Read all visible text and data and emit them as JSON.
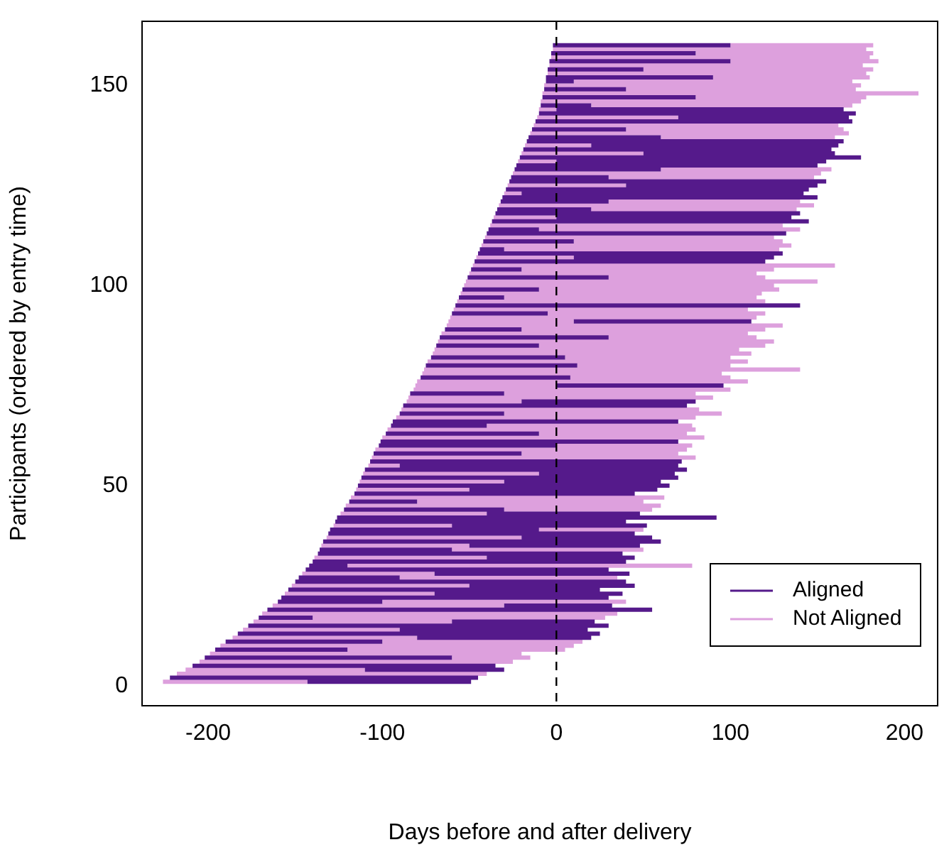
{
  "chart_data": {
    "type": "line",
    "xlabel": "Days before and after delivery",
    "ylabel": "Participants (ordered by entry time)",
    "xlim": [
      -238,
      219
    ],
    "ylim": [
      -5,
      166
    ],
    "xticks": [
      -200,
      -100,
      0,
      100,
      200
    ],
    "yticks": [
      0,
      50,
      100,
      150
    ],
    "legend": "bottom right",
    "line_style": "solid",
    "ref_lines": [
      {
        "axis": "x",
        "value": 0,
        "color": "#000000",
        "line_style": "dashed"
      }
    ],
    "series": [
      {
        "name": "Aligned",
        "color": "#551a8b",
        "x": [
          -143,
          -49,
          null,
          -222,
          -45,
          null,
          -110,
          -30,
          null,
          -209,
          -35,
          null,
          -202,
          -60,
          null,
          -196,
          -120,
          null,
          -190,
          -100,
          null,
          -80,
          20,
          null,
          -183,
          25,
          null,
          -90,
          18,
          null,
          -177,
          30,
          null,
          -60,
          22,
          null,
          -171,
          -140,
          null,
          -166,
          55,
          null,
          -30,
          32,
          null,
          -160,
          -100,
          null,
          -158,
          30,
          null,
          -70,
          38,
          null,
          -154,
          25,
          null,
          -50,
          45,
          null,
          -150,
          40,
          null,
          -148,
          -90,
          null,
          -70,
          42,
          null,
          -144,
          30,
          null,
          -142,
          -120,
          null,
          -140,
          40,
          null,
          -40,
          45,
          null,
          -137,
          38,
          null,
          -136,
          -60,
          null,
          -50,
          48,
          null,
          -134,
          60,
          null,
          -20,
          55,
          null,
          -131,
          45,
          null,
          -130,
          -10,
          null,
          -60,
          52,
          null,
          -127,
          40,
          null,
          -126,
          92,
          null,
          -40,
          48,
          null,
          -122,
          -30,
          null,
          -119,
          -80,
          null,
          -116,
          45,
          null,
          -50,
          58,
          null,
          -114,
          65,
          null,
          -30,
          60,
          null,
          -112,
          70,
          null,
          -10,
          68,
          null,
          -110,
          75,
          null,
          -90,
          70,
          null,
          -107,
          72,
          null,
          -105,
          -20,
          null,
          -102,
          0,
          null,
          -101,
          70,
          null,
          -98,
          -10,
          null,
          -95,
          -40,
          null,
          -94,
          70,
          null,
          -90,
          -30,
          null,
          -88,
          75,
          null,
          -20,
          80,
          null,
          -84,
          -30,
          null,
          0,
          96,
          null,
          -78,
          8,
          null,
          -75,
          12,
          null,
          -72,
          5,
          null,
          -69,
          -10,
          null,
          -67,
          30,
          null,
          -64,
          -20,
          null,
          10,
          112,
          null,
          -60,
          -5,
          null,
          -58,
          140,
          null,
          -56,
          -30,
          null,
          -54,
          -10,
          null,
          -51,
          30,
          null,
          -49,
          -20,
          null,
          -47,
          120,
          null,
          10,
          125,
          null,
          -45,
          130,
          null,
          -44,
          -30,
          null,
          -42,
          10,
          null,
          -40,
          132,
          null,
          -39,
          -10,
          null,
          -37,
          145,
          null,
          0,
          135,
          null,
          -35,
          140,
          null,
          -34,
          20,
          null,
          -32,
          30,
          null,
          -31,
          150,
          null,
          -20,
          142,
          null,
          -29,
          145,
          null,
          40,
          150,
          null,
          -27,
          155,
          null,
          -26,
          30,
          null,
          -24,
          60,
          null,
          -23,
          150,
          null,
          0,
          155,
          null,
          -21,
          175,
          null,
          50,
          160,
          null,
          -19,
          158,
          null,
          20,
          162,
          null,
          -17,
          165,
          null,
          -16,
          60,
          null,
          -14,
          40,
          null,
          -12,
          170,
          null,
          70,
          168,
          null,
          -10,
          172,
          null,
          0,
          165,
          null,
          -9,
          20,
          null,
          -8,
          80,
          null,
          -7,
          40,
          null,
          -6,
          10,
          null,
          -6,
          90,
          null,
          -5,
          50,
          null,
          -4,
          100,
          null,
          -3,
          80,
          null,
          -2,
          100,
          null
        ],
        "values": [
          1,
          1,
          null,
          2,
          2,
          null,
          4,
          4,
          null,
          5,
          5,
          null,
          7,
          7,
          null,
          9,
          9,
          null,
          11,
          11,
          null,
          12,
          12,
          null,
          13,
          13,
          null,
          14,
          14,
          null,
          15,
          15,
          null,
          16,
          16,
          null,
          17,
          17,
          null,
          19,
          19,
          null,
          20,
          20,
          null,
          21,
          21,
          null,
          22,
          22,
          null,
          23,
          23,
          null,
          24,
          24,
          null,
          25,
          25,
          null,
          26,
          26,
          null,
          27,
          27,
          null,
          28,
          28,
          null,
          29,
          29,
          null,
          30,
          30,
          null,
          31,
          31,
          null,
          32,
          32,
          null,
          33,
          33,
          null,
          34,
          34,
          null,
          35,
          35,
          null,
          36,
          36,
          null,
          37,
          37,
          null,
          38,
          38,
          null,
          39,
          39,
          null,
          40,
          40,
          null,
          41,
          41,
          null,
          42,
          42,
          null,
          43,
          43,
          null,
          44,
          44,
          null,
          46,
          46,
          null,
          48,
          48,
          null,
          49,
          49,
          null,
          50,
          50,
          null,
          51,
          51,
          null,
          52,
          52,
          null,
          53,
          53,
          null,
          54,
          54,
          null,
          55,
          55,
          null,
          56,
          56,
          null,
          58,
          58,
          null,
          60,
          60,
          null,
          61,
          61,
          null,
          63,
          63,
          null,
          65,
          65,
          null,
          66,
          66,
          null,
          68,
          68,
          null,
          70,
          70,
          null,
          71,
          71,
          null,
          73,
          73,
          null,
          75,
          75,
          null,
          77,
          77,
          null,
          80,
          80,
          null,
          82,
          82,
          null,
          85,
          85,
          null,
          87,
          87,
          null,
          89,
          89,
          null,
          91,
          91,
          null,
          93,
          93,
          null,
          95,
          95,
          null,
          97,
          97,
          null,
          99,
          99,
          null,
          102,
          102,
          null,
          104,
          104,
          null,
          106,
          106,
          null,
          107,
          107,
          null,
          108,
          108,
          null,
          109,
          109,
          null,
          111,
          111,
          null,
          113,
          113,
          null,
          114,
          114,
          null,
          116,
          116,
          null,
          117,
          117,
          null,
          118,
          118,
          null,
          119,
          119,
          null,
          121,
          121,
          null,
          122,
          122,
          null,
          123,
          123,
          null,
          124,
          124,
          null,
          125,
          125,
          null,
          126,
          126,
          null,
          127,
          127,
          null,
          129,
          129,
          null,
          130,
          130,
          null,
          131,
          131,
          null,
          132,
          132,
          null,
          133,
          133,
          null,
          134,
          134,
          null,
          135,
          135,
          null,
          136,
          136,
          null,
          137,
          137,
          null,
          139,
          139,
          null,
          141,
          141,
          null,
          142,
          142,
          null,
          143,
          143,
          null,
          144,
          144,
          null,
          145,
          145,
          null,
          147,
          147,
          null,
          149,
          149,
          null,
          151,
          151,
          null,
          152,
          152,
          null,
          154,
          154,
          null,
          156,
          156,
          null,
          158,
          158,
          null,
          160,
          160,
          null
        ]
      },
      {
        "name": "Not Aligned",
        "color": "#dda0dd",
        "x": [
          -226,
          -143,
          null,
          -218,
          -40,
          null,
          -213,
          -110,
          null,
          -205,
          -25,
          null,
          -60,
          -15,
          null,
          -199,
          -20,
          null,
          -120,
          5,
          null,
          -193,
          10,
          null,
          -100,
          15,
          null,
          -186,
          -80,
          null,
          -180,
          -90,
          null,
          -174,
          -60,
          null,
          -140,
          28,
          null,
          -169,
          35,
          null,
          -163,
          -30,
          null,
          -100,
          40,
          null,
          -156,
          -70,
          null,
          -152,
          -50,
          null,
          -90,
          35,
          null,
          -146,
          -70,
          null,
          -120,
          78,
          null,
          -139,
          -40,
          null,
          -60,
          50,
          null,
          -135,
          -50,
          null,
          -132,
          -20,
          null,
          -10,
          50,
          null,
          -128,
          -60,
          null,
          -124,
          -40,
          null,
          -30,
          55,
          null,
          -121,
          60,
          null,
          -80,
          50,
          null,
          -118,
          62,
          null,
          -115,
          -50,
          null,
          -113,
          -30,
          null,
          -111,
          -10,
          null,
          -108,
          -90,
          null,
          -106,
          80,
          null,
          -20,
          70,
          null,
          -104,
          75,
          null,
          0,
          78,
          null,
          -100,
          85,
          null,
          -10,
          75,
          null,
          -97,
          80,
          null,
          -40,
          78,
          null,
          -92,
          80,
          null,
          -30,
          95,
          null,
          -89,
          82,
          null,
          -86,
          -20,
          null,
          -85,
          90,
          null,
          -30,
          80,
          null,
          -82,
          100,
          null,
          -81,
          0,
          null,
          -80,
          110,
          null,
          8,
          100,
          null,
          -77,
          95,
          null,
          -76,
          140,
          null,
          12,
          100,
          null,
          -74,
          110,
          null,
          5,
          100,
          null,
          -71,
          112,
          null,
          -70,
          105,
          null,
          -10,
          120,
          null,
          -68,
          125,
          null,
          30,
          115,
          null,
          -66,
          110,
          null,
          -20,
          120,
          null,
          -63,
          130,
          null,
          -62,
          10,
          null,
          -61,
          115,
          null,
          -5,
          120,
          null,
          -59,
          110,
          null,
          -57,
          120,
          null,
          -30,
          115,
          null,
          -55,
          118,
          null,
          -10,
          128,
          null,
          -53,
          125,
          null,
          -52,
          150,
          null,
          30,
          120,
          null,
          -50,
          115,
          null,
          -20,
          125,
          null,
          -48,
          160,
          null,
          -46,
          10,
          null,
          -30,
          128,
          null,
          -43,
          135,
          null,
          10,
          130,
          null,
          -41,
          125,
          null,
          -10,
          140,
          null,
          -38,
          130,
          null,
          -36,
          0,
          null,
          20,
          138,
          null,
          -33,
          148,
          null,
          30,
          140,
          null,
          -30,
          -20,
          null,
          -28,
          40,
          null,
          30,
          148,
          null,
          -25,
          152,
          null,
          60,
          158,
          null,
          -22,
          0,
          null,
          -20,
          50,
          null,
          -18,
          20,
          null,
          60,
          160,
          null,
          -15,
          168,
          null,
          40,
          165,
          null,
          -13,
          162,
          null,
          -11,
          70,
          null,
          -10,
          0,
          null,
          20,
          170,
          null,
          -9,
          175,
          null,
          80,
          178,
          null,
          -8,
          208,
          null,
          40,
          172,
          null,
          -7,
          175,
          null,
          10,
          170,
          null,
          90,
          180,
          null,
          -5,
          178,
          null,
          50,
          182,
          null,
          -4,
          176,
          null,
          100,
          185,
          null,
          -3,
          180,
          null,
          80,
          182,
          null,
          -2,
          178,
          null,
          100,
          182,
          null
        ],
        "values": [
          1,
          1,
          null,
          3,
          3,
          null,
          4,
          4,
          null,
          6,
          6,
          null,
          7,
          7,
          null,
          8,
          8,
          null,
          9,
          9,
          null,
          10,
          10,
          null,
          11,
          11,
          null,
          12,
          12,
          null,
          14,
          14,
          null,
          16,
          16,
          null,
          17,
          17,
          null,
          18,
          18,
          null,
          20,
          20,
          null,
          21,
          21,
          null,
          23,
          23,
          null,
          25,
          25,
          null,
          27,
          27,
          null,
          28,
          28,
          null,
          30,
          30,
          null,
          32,
          32,
          null,
          34,
          34,
          null,
          35,
          35,
          null,
          37,
          37,
          null,
          39,
          39,
          null,
          40,
          40,
          null,
          43,
          43,
          null,
          44,
          44,
          null,
          45,
          45,
          null,
          46,
          46,
          null,
          47,
          47,
          null,
          49,
          49,
          null,
          51,
          51,
          null,
          53,
          53,
          null,
          55,
          55,
          null,
          57,
          57,
          null,
          58,
          58,
          null,
          59,
          59,
          null,
          60,
          60,
          null,
          62,
          62,
          null,
          63,
          63,
          null,
          64,
          64,
          null,
          65,
          65,
          null,
          67,
          67,
          null,
          68,
          68,
          null,
          69,
          69,
          null,
          71,
          71,
          null,
          72,
          72,
          null,
          73,
          73,
          null,
          74,
          74,
          null,
          75,
          75,
          null,
          76,
          76,
          null,
          77,
          77,
          null,
          78,
          78,
          null,
          79,
          79,
          null,
          80,
          80,
          null,
          81,
          81,
          null,
          82,
          82,
          null,
          83,
          83,
          null,
          84,
          84,
          null,
          85,
          85,
          null,
          86,
          86,
          null,
          87,
          87,
          null,
          88,
          88,
          null,
          89,
          89,
          null,
          90,
          90,
          null,
          91,
          91,
          null,
          92,
          92,
          null,
          93,
          93,
          null,
          94,
          94,
          null,
          96,
          96,
          null,
          97,
          97,
          null,
          98,
          98,
          null,
          99,
          99,
          null,
          100,
          100,
          null,
          101,
          101,
          null,
          102,
          102,
          null,
          103,
          103,
          null,
          104,
          104,
          null,
          105,
          105,
          null,
          107,
          107,
          null,
          109,
          109,
          null,
          110,
          110,
          null,
          111,
          111,
          null,
          112,
          112,
          null,
          114,
          114,
          null,
          115,
          115,
          null,
          117,
          117,
          null,
          119,
          119,
          null,
          120,
          120,
          null,
          121,
          121,
          null,
          123,
          123,
          null,
          125,
          125,
          null,
          127,
          127,
          null,
          128,
          128,
          null,
          129,
          129,
          null,
          131,
          131,
          null,
          133,
          133,
          null,
          135,
          135,
          null,
          137,
          137,
          null,
          138,
          138,
          null,
          139,
          139,
          null,
          140,
          140,
          null,
          142,
          142,
          null,
          144,
          144,
          null,
          145,
          145,
          null,
          146,
          146,
          null,
          147,
          147,
          null,
          148,
          148,
          null,
          149,
          149,
          null,
          150,
          150,
          null,
          151,
          151,
          null,
          152,
          152,
          null,
          153,
          153,
          null,
          154,
          154,
          null,
          155,
          155,
          null,
          156,
          156,
          null,
          157,
          157,
          null,
          158,
          158,
          null,
          159,
          159,
          null,
          160,
          160,
          null
        ]
      }
    ]
  }
}
